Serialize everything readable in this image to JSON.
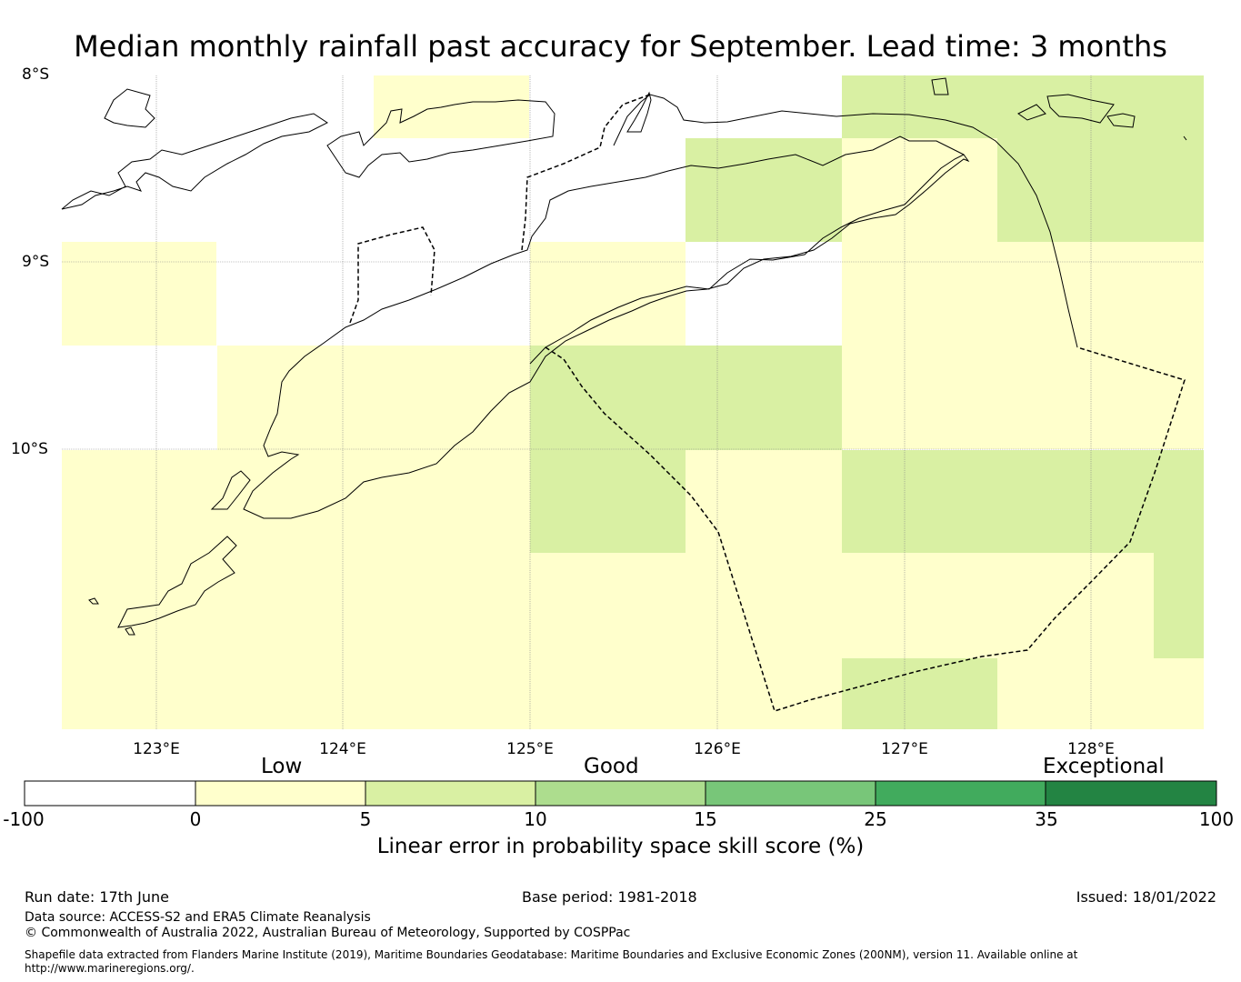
{
  "title": "Median monthly rainfall past accuracy for September. Lead time: 3 months",
  "lat_labels": [
    "8°S",
    "9°S",
    "10°S"
  ],
  "lon_labels": [
    "123°E",
    "124°E",
    "125°E",
    "126°E",
    "127°E",
    "128°E"
  ],
  "colorbar": {
    "categories": [
      "Low",
      "Good",
      "Exceptional"
    ],
    "ticks": [
      "-100",
      "0",
      "5",
      "10",
      "15",
      "25",
      "35",
      "100"
    ],
    "colors": [
      "#ffffff",
      "#ffffcc",
      "#d9f0a3",
      "#addd8e",
      "#78c679",
      "#41ab5d",
      "#238443"
    ],
    "label": "Linear error in probability space skill score (%)"
  },
  "grid_colors": {
    "low": "#ffffcc",
    "good": "#d9f0a3",
    "none": "#ffffff"
  },
  "footer": {
    "run_date": "Run date: 17th June",
    "base_period": "Base period: 1981-2018",
    "issued": "Issued: 18/01/2022",
    "data_source": "Data source: ACCESS-S2 and ERA5 Climate Reanalysis",
    "copyright": "© Commonwealth of Australia 2022, Australian Bureau of Meteorology, Supported by COSPPac",
    "shapefile": "Shapefile data extracted from Flanders Marine Institute (2019), Maritime Boundaries Geodatabase: Maritime Boundaries and Exclusive Economic Zones (200NM), version 11. Available online at http://www.marineregions.org/."
  }
}
